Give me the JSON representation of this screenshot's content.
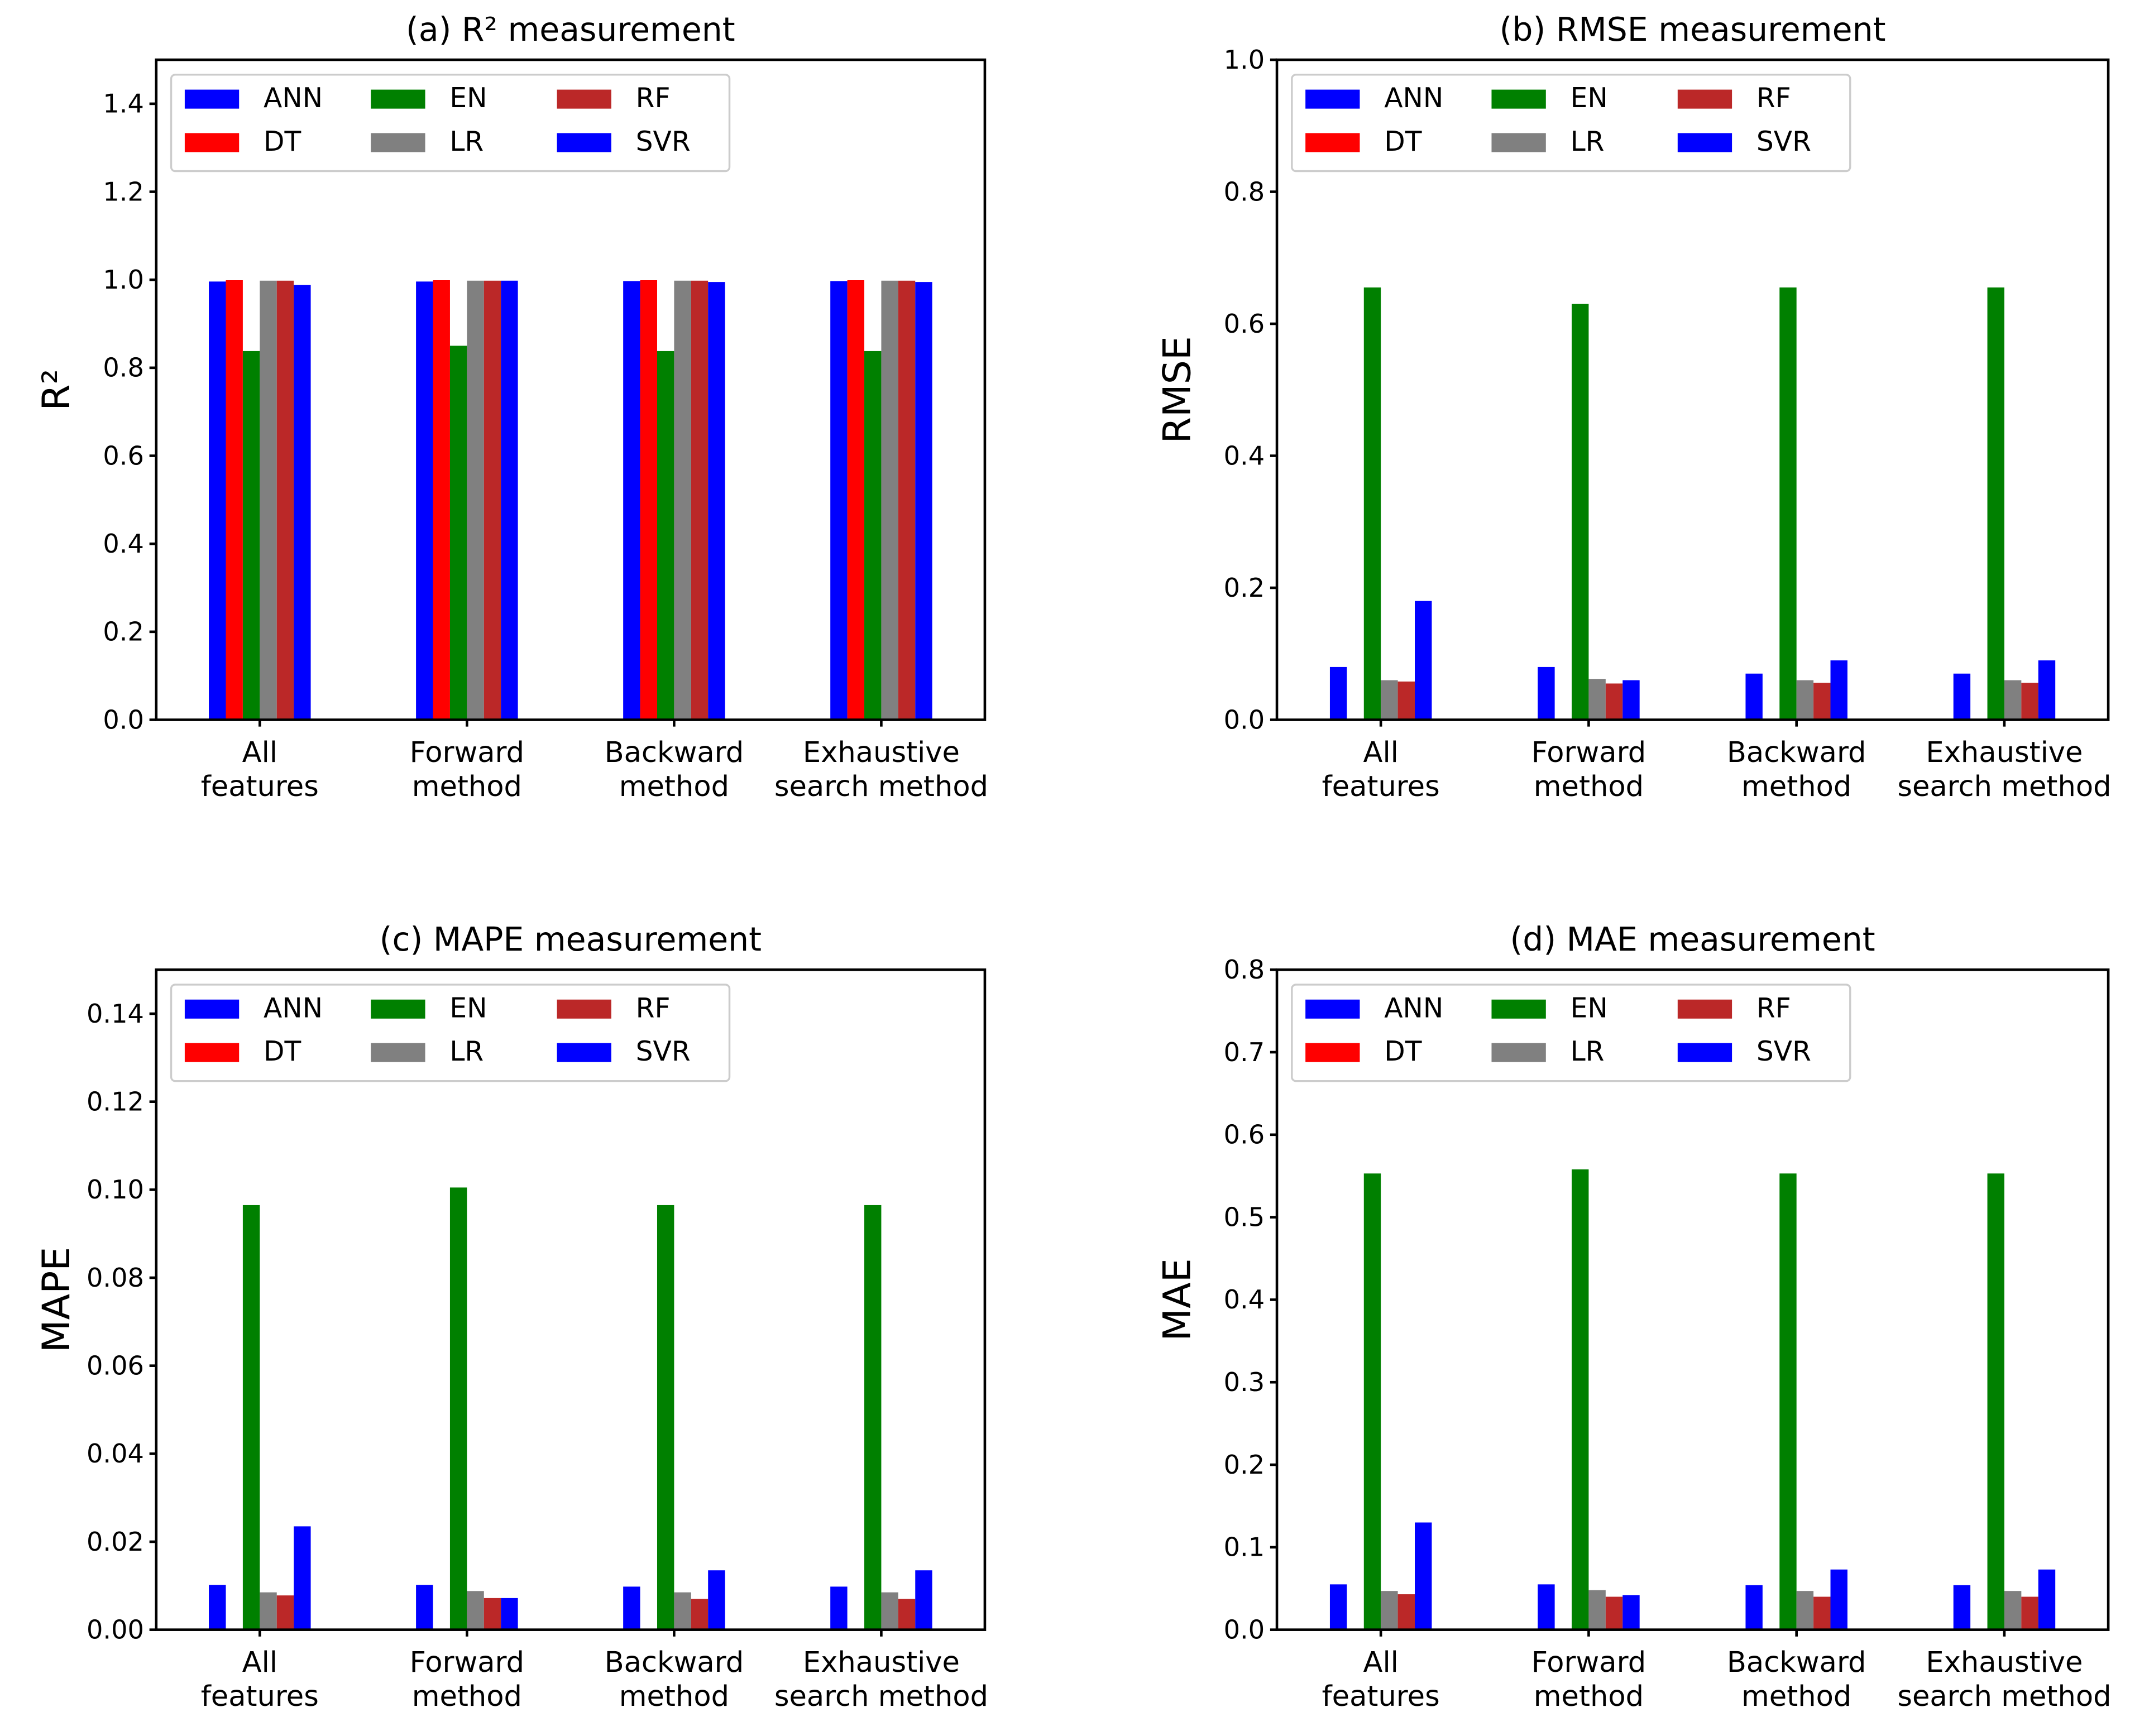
{
  "figure": {
    "legend_labels": [
      "ANN",
      "DT",
      "EN",
      "LR",
      "RF",
      "SVR"
    ],
    "colors": {
      "ANN": "#0000ff",
      "DT": "#ff0000",
      "EN": "#008000",
      "LR": "#808080",
      "RF": "#bb2828",
      "SVR": "#0000ff"
    }
  },
  "chart_data": [
    {
      "type": "bar",
      "title": "(a) R² measurement",
      "xlabel": "",
      "ylabel": "R²",
      "ylim": [
        0,
        1.5
      ],
      "yticks": [
        "0.0",
        "0.2",
        "0.4",
        "0.6",
        "0.8",
        "1.0",
        "1.2",
        "1.4"
      ],
      "categories": [
        [
          "All",
          "features"
        ],
        [
          "Forward",
          "method"
        ],
        [
          "Backward",
          "method"
        ],
        [
          "Exhaustive",
          "search method"
        ]
      ],
      "legend_position": "top-left",
      "grid": false,
      "series": [
        {
          "name": "ANN",
          "values": [
            0.996,
            0.996,
            0.997,
            0.997
          ]
        },
        {
          "name": "DT",
          "values": [
            0.999,
            0.999,
            0.999,
            0.999
          ]
        },
        {
          "name": "EN",
          "values": [
            0.838,
            0.85,
            0.838,
            0.838
          ]
        },
        {
          "name": "LR",
          "values": [
            0.998,
            0.998,
            0.998,
            0.998
          ]
        },
        {
          "name": "RF",
          "values": [
            0.998,
            0.998,
            0.998,
            0.998
          ]
        },
        {
          "name": "SVR",
          "values": [
            0.988,
            0.998,
            0.995,
            0.995
          ]
        }
      ]
    },
    {
      "type": "bar",
      "title": "(b) RMSE measurement",
      "xlabel": "",
      "ylabel": "RMSE",
      "ylim": [
        0,
        1.0
      ],
      "yticks": [
        "0.0",
        "0.2",
        "0.4",
        "0.6",
        "0.8",
        "1.0"
      ],
      "categories": [
        [
          "All",
          "features"
        ],
        [
          "Forward",
          "method"
        ],
        [
          "Backward",
          "method"
        ],
        [
          "Exhaustive",
          "search method"
        ]
      ],
      "legend_position": "top-left",
      "grid": false,
      "series": [
        {
          "name": "ANN",
          "values": [
            0.08,
            0.08,
            0.07,
            0.07
          ]
        },
        {
          "name": "DT",
          "values": [
            0.0,
            0.0,
            0.0,
            0.0
          ]
        },
        {
          "name": "EN",
          "values": [
            0.655,
            0.63,
            0.655,
            0.655
          ]
        },
        {
          "name": "LR",
          "values": [
            0.06,
            0.062,
            0.06,
            0.06
          ]
        },
        {
          "name": "RF",
          "values": [
            0.058,
            0.055,
            0.056,
            0.056
          ]
        },
        {
          "name": "SVR",
          "values": [
            0.18,
            0.06,
            0.09,
            0.09
          ]
        }
      ]
    },
    {
      "type": "bar",
      "title": "(c) MAPE measurement",
      "xlabel": "",
      "ylabel": "MAPE",
      "ylim": [
        0,
        0.15
      ],
      "yticks": [
        "0.00",
        "0.02",
        "0.04",
        "0.06",
        "0.08",
        "0.10",
        "0.12",
        "0.14"
      ],
      "categories": [
        [
          "All",
          "features"
        ],
        [
          "Forward",
          "method"
        ],
        [
          "Backward",
          "method"
        ],
        [
          "Exhaustive",
          "search method"
        ]
      ],
      "legend_position": "top-left",
      "grid": false,
      "series": [
        {
          "name": "ANN",
          "values": [
            0.0102,
            0.0102,
            0.0098,
            0.0098
          ]
        },
        {
          "name": "DT",
          "values": [
            0.0,
            0.0,
            0.0,
            0.0
          ]
        },
        {
          "name": "EN",
          "values": [
            0.0965,
            0.1005,
            0.0965,
            0.0965
          ]
        },
        {
          "name": "LR",
          "values": [
            0.0085,
            0.0088,
            0.0085,
            0.0085
          ]
        },
        {
          "name": "RF",
          "values": [
            0.0078,
            0.0072,
            0.007,
            0.007
          ]
        },
        {
          "name": "SVR",
          "values": [
            0.0235,
            0.0072,
            0.0135,
            0.0135
          ]
        }
      ]
    },
    {
      "type": "bar",
      "title": "(d) MAE measurement",
      "xlabel": "",
      "ylabel": "MAE",
      "ylim": [
        0,
        0.8
      ],
      "yticks": [
        "0.0",
        "0.1",
        "0.2",
        "0.3",
        "0.4",
        "0.5",
        "0.6",
        "0.7",
        "0.8"
      ],
      "categories": [
        [
          "All",
          "features"
        ],
        [
          "Forward",
          "method"
        ],
        [
          "Backward",
          "method"
        ],
        [
          "Exhaustive",
          "search method"
        ]
      ],
      "legend_position": "top-left",
      "grid": false,
      "series": [
        {
          "name": "ANN",
          "values": [
            0.055,
            0.055,
            0.054,
            0.054
          ]
        },
        {
          "name": "DT",
          "values": [
            0.0,
            0.0,
            0.0,
            0.0
          ]
        },
        {
          "name": "EN",
          "values": [
            0.553,
            0.558,
            0.553,
            0.553
          ]
        },
        {
          "name": "LR",
          "values": [
            0.047,
            0.048,
            0.047,
            0.047
          ]
        },
        {
          "name": "RF",
          "values": [
            0.043,
            0.04,
            0.04,
            0.04
          ]
        },
        {
          "name": "SVR",
          "values": [
            0.13,
            0.042,
            0.073,
            0.073
          ]
        }
      ]
    }
  ]
}
